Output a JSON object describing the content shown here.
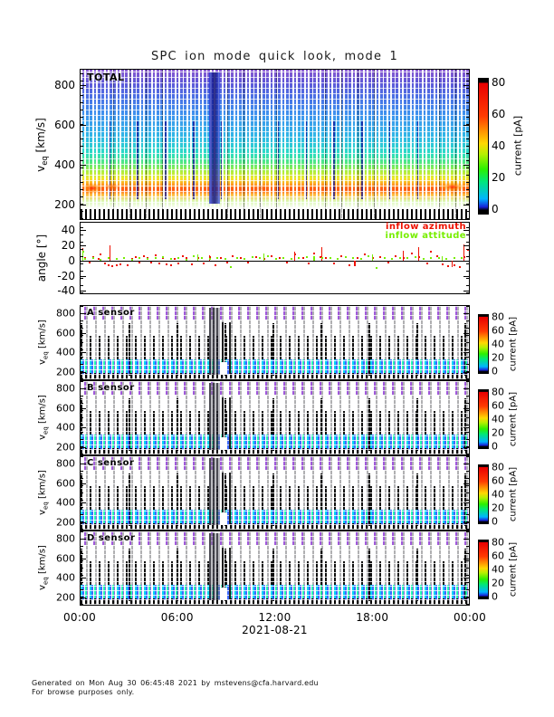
{
  "title": "SPC ion mode quick look, mode 1",
  "velocity_axis": {
    "v": "v",
    "sub": "eq",
    "unit": " [km/s]",
    "ticks": [
      "800",
      "600",
      "400",
      "200"
    ]
  },
  "angle_axis": {
    "label": "angle [°]",
    "ticks": [
      "40",
      "20",
      "0",
      "-20",
      "-40"
    ]
  },
  "colorbar": {
    "label": "current [pA]",
    "ticks": [
      "80",
      "60",
      "40",
      "20",
      "0"
    ]
  },
  "x_axis": {
    "tick_labels": [
      "00:00",
      "06:00",
      "12:00",
      "18:00",
      "00:00"
    ],
    "date": "2021-08-21"
  },
  "panels": {
    "total": {
      "label": "TOTAL"
    },
    "angle": {
      "legend": [
        {
          "label": "inflow azimuth",
          "color": "#ee1100"
        },
        {
          "label": "inflow attitude",
          "color": "#77ee00"
        }
      ]
    },
    "sensors": [
      {
        "label": "A sensor"
      },
      {
        "label": "B sensor"
      },
      {
        "label": "C sensor"
      },
      {
        "label": "D sensor"
      }
    ]
  },
  "footer": {
    "line1": "Generated on Mon Aug 30 06:45:48 2021 by mstevens@cfa.harvard.edu",
    "line2": "For browse purposes only."
  },
  "chart_data": {
    "type": "multi-panel time spectrogram with scatter overlay panel",
    "x": {
      "date": "2021-08-21",
      "range_hours": [
        0,
        24
      ],
      "ticks": [
        "00:00",
        "06:00",
        "12:00",
        "18:00",
        "00:00"
      ],
      "grid": false
    },
    "heatmap_panels": [
      {
        "name": "TOTAL",
        "type": "heatmap",
        "ylabel": "v_eq [km/s]",
        "ylim": [
          145,
          900
        ],
        "yticks": [
          200,
          400,
          600,
          800
        ],
        "colorbar": {
          "label": "current [pA]",
          "range": [
            0,
            80
          ],
          "ticks": [
            0,
            20,
            40,
            60,
            80
          ]
        },
        "description": "Dense vertical spectral columns in blue/cyan/purple above 350 km/s; strong 20-80 pA (green/yellow/orange/red) current band near 250-330 km/s persisting all day; red peaks near 00:30 and 23:30; broad blue disturbance column near 07:30; periodic dark-blue spikes every ~40 min."
      },
      {
        "name": "A sensor",
        "type": "heatmap",
        "ylabel": "v_eq [km/s]",
        "ylim": [
          145,
          900
        ],
        "yticks": [
          200,
          400,
          600,
          800
        ],
        "colorbar": {
          "label": "current [pA]",
          "range": [
            0,
            80
          ],
          "ticks": [
            0,
            20,
            40,
            60,
            80
          ]
        },
        "description": "Black measurement columns to ~520 km/s with gray dashed columns to top; cyan/blue 5-20 pA band near 250-300 km/s; dark column cluster near 07:30-08:30 reaching ~650 km/s."
      },
      {
        "name": "B sensor",
        "type": "heatmap",
        "ylabel": "v_eq [km/s]",
        "ylim": [
          145,
          900
        ],
        "yticks": [
          200,
          400,
          600,
          800
        ],
        "colorbar": {
          "label": "current [pA]",
          "range": [
            0,
            80
          ],
          "ticks": [
            0,
            20,
            40,
            60,
            80
          ]
        },
        "description": "Same structure as A sensor; cyan/green band near 250-300 km/s; event cluster near 07:30-08:30."
      },
      {
        "name": "C sensor",
        "type": "heatmap",
        "ylabel": "v_eq [km/s]",
        "ylim": [
          145,
          900
        ],
        "yticks": [
          200,
          400,
          600,
          800
        ],
        "colorbar": {
          "label": "current [pA]",
          "range": [
            0,
            80
          ],
          "ticks": [
            0,
            20,
            40,
            60,
            80
          ]
        },
        "description": "Same structure as A sensor; cyan/green band near 250-300 km/s; event cluster near 07:30-08:30."
      },
      {
        "name": "D sensor",
        "type": "heatmap",
        "ylabel": "v_eq [km/s]",
        "ylim": [
          145,
          900
        ],
        "yticks": [
          200,
          400,
          600,
          800
        ],
        "colorbar": {
          "label": "current [pA]",
          "range": [
            0,
            80
          ],
          "ticks": [
            0,
            20,
            40,
            60,
            80
          ]
        },
        "description": "Same structure as A sensor; cyan/green band near 250-300 km/s; event cluster near 07:30-08:30."
      }
    ],
    "angle": {
      "name": "angle",
      "type": "scatter",
      "ylabel": "angle [deg]",
      "ylim": [
        -43,
        50
      ],
      "yticks": [
        40,
        20,
        0,
        -20,
        -40
      ],
      "series": [
        {
          "name": "inflow azimuth",
          "color": "#ee1100",
          "points": [
            [
              0.01,
              3
            ],
            [
              0.02,
              -2
            ],
            [
              0.03,
              5
            ],
            [
              0.045,
              2
            ],
            [
              0.05,
              8
            ],
            [
              0.06,
              -4
            ],
            [
              0.07,
              -6
            ],
            [
              0.08,
              -7
            ],
            [
              0.09,
              -6
            ],
            [
              0.1,
              -5
            ],
            [
              0.11,
              4
            ],
            [
              0.12,
              -6
            ],
            [
              0.13,
              2
            ],
            [
              0.14,
              5
            ],
            [
              0.15,
              -3
            ],
            [
              0.16,
              6
            ],
            [
              0.17,
              3
            ],
            [
              0.18,
              -2
            ],
            [
              0.19,
              7
            ],
            [
              0.2,
              -4
            ],
            [
              0.21,
              3
            ],
            [
              0.22,
              -5
            ],
            [
              0.23,
              -6
            ],
            [
              0.24,
              2
            ],
            [
              0.25,
              -4
            ],
            [
              0.26,
              6
            ],
            [
              0.27,
              3
            ],
            [
              0.285,
              -5
            ],
            [
              0.3,
              4
            ],
            [
              0.315,
              -4
            ],
            [
              0.33,
              5
            ],
            [
              0.345,
              -6
            ],
            [
              0.36,
              3
            ],
            [
              0.375,
              -2
            ],
            [
              0.39,
              6
            ],
            [
              0.41,
              4
            ],
            [
              0.43,
              -3
            ],
            [
              0.45,
              5
            ],
            [
              0.47,
              2
            ],
            [
              0.49,
              6
            ],
            [
              0.51,
              3
            ],
            [
              0.53,
              -3
            ],
            [
              0.55,
              8
            ],
            [
              0.57,
              4
            ],
            [
              0.585,
              -4
            ],
            [
              0.6,
              10
            ],
            [
              0.615,
              5
            ],
            [
              0.63,
              3
            ],
            [
              0.65,
              -4
            ],
            [
              0.67,
              6
            ],
            [
              0.69,
              -6
            ],
            [
              0.71,
              4
            ],
            [
              0.73,
              8
            ],
            [
              0.75,
              3
            ],
            [
              0.77,
              5
            ],
            [
              0.79,
              -3
            ],
            [
              0.81,
              6
            ],
            [
              0.83,
              4
            ],
            [
              0.85,
              9
            ],
            [
              0.87,
              5
            ],
            [
              0.89,
              -4
            ],
            [
              0.9,
              12
            ],
            [
              0.915,
              6
            ],
            [
              0.93,
              -5
            ],
            [
              0.945,
              -7
            ],
            [
              0.96,
              -6
            ],
            [
              0.975,
              -8
            ],
            [
              0.985,
              5
            ],
            [
              0.995,
              14
            ]
          ],
          "spikes": [
            [
              0.005,
              0,
              17
            ],
            [
              0.075,
              0,
              20
            ],
            [
              0.33,
              0,
              7
            ],
            [
              0.55,
              0,
              12
            ],
            [
              0.62,
              0,
              18
            ],
            [
              0.705,
              -7,
              0
            ],
            [
              0.83,
              0,
              13
            ],
            [
              0.87,
              0,
              18
            ],
            [
              0.955,
              -8,
              0
            ],
            [
              0.985,
              0,
              21
            ]
          ]
        },
        {
          "name": "inflow attitude",
          "color": "#77ee00",
          "points": [
            [
              0.005,
              12
            ],
            [
              0.01,
              2
            ],
            [
              0.03,
              3
            ],
            [
              0.05,
              1
            ],
            [
              0.07,
              4
            ],
            [
              0.09,
              2
            ],
            [
              0.11,
              3
            ],
            [
              0.13,
              1
            ],
            [
              0.15,
              4
            ],
            [
              0.17,
              2
            ],
            [
              0.19,
              3
            ],
            [
              0.21,
              5
            ],
            [
              0.23,
              2
            ],
            [
              0.25,
              3
            ],
            [
              0.27,
              1
            ],
            [
              0.29,
              6
            ],
            [
              0.31,
              3
            ],
            [
              0.33,
              2
            ],
            [
              0.35,
              4
            ],
            [
              0.37,
              2
            ],
            [
              0.385,
              -8
            ],
            [
              0.4,
              3
            ],
            [
              0.42,
              2
            ],
            [
              0.44,
              5
            ],
            [
              0.46,
              3
            ],
            [
              0.48,
              6
            ],
            [
              0.5,
              2
            ],
            [
              0.52,
              4
            ],
            [
              0.54,
              2
            ],
            [
              0.56,
              3
            ],
            [
              0.58,
              5
            ],
            [
              0.6,
              2
            ],
            [
              0.62,
              4
            ],
            [
              0.64,
              3
            ],
            [
              0.66,
              2
            ],
            [
              0.68,
              5
            ],
            [
              0.7,
              3
            ],
            [
              0.72,
              2
            ],
            [
              0.74,
              6
            ],
            [
              0.76,
              -10
            ],
            [
              0.78,
              3
            ],
            [
              0.8,
              2
            ],
            [
              0.82,
              4
            ],
            [
              0.84,
              3
            ],
            [
              0.86,
              5
            ],
            [
              0.88,
              2
            ],
            [
              0.9,
              4
            ],
            [
              0.92,
              3
            ],
            [
              0.94,
              2
            ],
            [
              0.96,
              4
            ],
            [
              0.98,
              3
            ]
          ],
          "spikes": [
            [
              0.005,
              0,
              12
            ],
            [
              0.3,
              0,
              8
            ],
            [
              0.47,
              0,
              9
            ],
            [
              0.6,
              0,
              6
            ],
            [
              0.75,
              0,
              8
            ],
            [
              0.93,
              0,
              6
            ]
          ]
        }
      ]
    }
  }
}
